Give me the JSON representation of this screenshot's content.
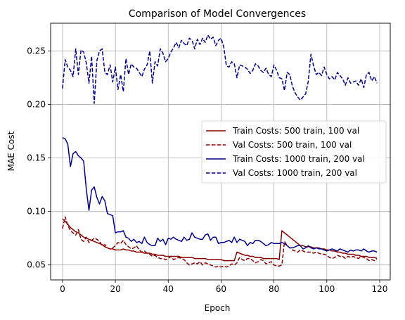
{
  "chart_data": {
    "type": "line",
    "title": "Comparison of Model Convergences",
    "xlabel": "Epoch",
    "ylabel": "MAE Cost",
    "xlim": [
      -4.5,
      124
    ],
    "ylim": [
      0.036,
      0.276
    ],
    "xticks": [
      0,
      20,
      40,
      60,
      80,
      100,
      120
    ],
    "xtick_labels": [
      "0",
      "20",
      "40",
      "60",
      "80",
      "100",
      "120"
    ],
    "yticks": [
      0.05,
      0.1,
      0.15,
      0.2,
      0.25
    ],
    "ytick_labels": [
      "0.05",
      "0.10",
      "0.15",
      "0.20",
      "0.25"
    ],
    "grid": true,
    "legend_position": "center-right",
    "x": [
      0,
      1,
      2,
      3,
      4,
      5,
      6,
      7,
      8,
      9,
      10,
      11,
      12,
      13,
      14,
      15,
      16,
      17,
      18,
      19,
      20,
      21,
      22,
      23,
      24,
      25,
      26,
      27,
      28,
      29,
      30,
      31,
      32,
      33,
      34,
      35,
      36,
      37,
      38,
      39,
      40,
      41,
      42,
      43,
      44,
      45,
      46,
      47,
      48,
      49,
      50,
      51,
      52,
      53,
      54,
      55,
      56,
      57,
      58,
      59,
      60,
      61,
      62,
      63,
      64,
      65,
      66,
      67,
      68,
      69,
      70,
      71,
      72,
      73,
      74,
      75,
      76,
      77,
      78,
      79,
      80,
      81,
      82,
      83,
      84,
      85,
      86,
      87,
      88,
      89,
      90,
      91,
      92,
      93,
      94,
      95,
      96,
      97,
      98,
      99,
      100,
      101,
      102,
      103,
      104,
      105,
      106,
      107,
      108,
      109,
      110,
      111,
      112,
      113,
      114,
      115,
      116,
      117,
      118,
      119
    ],
    "series": [
      {
        "name": "Train Costs: 500 train, 100 val",
        "color": "#8b0000",
        "dash": "solid",
        "values": [
          0.093,
          0.091,
          0.088,
          0.085,
          0.083,
          0.081,
          0.08,
          0.078,
          0.076,
          0.075,
          0.074,
          0.073,
          0.072,
          0.071,
          0.07,
          0.069,
          0.067,
          0.066,
          0.065,
          0.065,
          0.064,
          0.064,
          0.064,
          0.065,
          0.064,
          0.064,
          0.063,
          0.063,
          0.062,
          0.062,
          0.062,
          0.061,
          0.061,
          0.061,
          0.06,
          0.06,
          0.059,
          0.059,
          0.059,
          0.058,
          0.058,
          0.058,
          0.058,
          0.058,
          0.058,
          0.057,
          0.057,
          0.057,
          0.057,
          0.057,
          0.056,
          0.056,
          0.056,
          0.056,
          0.056,
          0.055,
          0.055,
          0.055,
          0.055,
          0.055,
          0.055,
          0.054,
          0.054,
          0.054,
          0.054,
          0.054,
          0.062,
          0.061,
          0.06,
          0.059,
          0.059,
          0.058,
          0.058,
          0.057,
          0.057,
          0.057,
          0.056,
          0.056,
          0.056,
          0.056,
          0.056,
          0.056,
          0.055,
          0.082,
          0.08,
          0.078,
          0.076,
          0.074,
          0.072,
          0.07,
          0.068,
          0.068,
          0.067,
          0.067,
          0.067,
          0.066,
          0.066,
          0.066,
          0.065,
          0.065,
          0.064,
          0.064,
          0.063,
          0.063,
          0.062,
          0.062,
          0.061,
          0.061,
          0.06,
          0.06,
          0.06,
          0.059,
          0.059,
          0.058,
          0.058,
          0.058,
          0.057,
          0.057,
          0.057,
          0.056
        ]
      },
      {
        "name": "Val Costs: 500 train, 100 val",
        "color": "#8b0000",
        "dash": "dashed",
        "values": [
          0.084,
          0.095,
          0.087,
          0.082,
          0.08,
          0.078,
          0.083,
          0.074,
          0.072,
          0.076,
          0.071,
          0.073,
          0.075,
          0.074,
          0.072,
          0.068,
          0.069,
          0.066,
          0.065,
          0.066,
          0.068,
          0.071,
          0.07,
          0.073,
          0.069,
          0.067,
          0.065,
          0.066,
          0.068,
          0.064,
          0.062,
          0.063,
          0.061,
          0.06,
          0.058,
          0.059,
          0.057,
          0.056,
          0.056,
          0.055,
          0.056,
          0.058,
          0.055,
          0.056,
          0.057,
          0.056,
          0.055,
          0.052,
          0.05,
          0.051,
          0.052,
          0.051,
          0.053,
          0.05,
          0.052,
          0.051,
          0.05,
          0.049,
          0.048,
          0.049,
          0.048,
          0.049,
          0.048,
          0.049,
          0.051,
          0.05,
          0.052,
          0.057,
          0.055,
          0.054,
          0.056,
          0.056,
          0.054,
          0.052,
          0.053,
          0.055,
          0.054,
          0.051,
          0.052,
          0.053,
          0.05,
          0.049,
          0.049,
          0.05,
          0.072,
          0.068,
          0.066,
          0.064,
          0.063,
          0.062,
          0.064,
          0.063,
          0.062,
          0.062,
          0.062,
          0.061,
          0.062,
          0.061,
          0.06,
          0.06,
          0.059,
          0.057,
          0.056,
          0.057,
          0.059,
          0.058,
          0.058,
          0.056,
          0.058,
          0.057,
          0.058,
          0.057,
          0.056,
          0.058,
          0.057,
          0.056,
          0.054,
          0.055,
          0.054,
          0.055
        ]
      },
      {
        "name": "Train Costs: 1000 train, 200 val",
        "color": "#00008b",
        "dash": "solid",
        "values": [
          0.169,
          0.168,
          0.163,
          0.142,
          0.154,
          0.156,
          0.152,
          0.15,
          0.147,
          0.121,
          0.101,
          0.12,
          0.123,
          0.113,
          0.107,
          0.114,
          0.11,
          0.098,
          0.097,
          0.096,
          0.08,
          0.081,
          0.081,
          0.082,
          0.076,
          0.075,
          0.072,
          0.074,
          0.071,
          0.072,
          0.07,
          0.076,
          0.071,
          0.069,
          0.068,
          0.068,
          0.075,
          0.072,
          0.074,
          0.069,
          0.075,
          0.074,
          0.076,
          0.074,
          0.073,
          0.072,
          0.076,
          0.073,
          0.074,
          0.08,
          0.076,
          0.075,
          0.074,
          0.074,
          0.078,
          0.079,
          0.073,
          0.076,
          0.076,
          0.07,
          0.071,
          0.071,
          0.072,
          0.073,
          0.071,
          0.076,
          0.071,
          0.074,
          0.073,
          0.072,
          0.068,
          0.071,
          0.07,
          0.073,
          0.073,
          0.072,
          0.07,
          0.068,
          0.069,
          0.071,
          0.07,
          0.07,
          0.07,
          0.071,
          0.07,
          0.068,
          0.066,
          0.066,
          0.067,
          0.068,
          0.068,
          0.065,
          0.066,
          0.068,
          0.066,
          0.065,
          0.066,
          0.065,
          0.065,
          0.064,
          0.063,
          0.064,
          0.065,
          0.064,
          0.063,
          0.065,
          0.064,
          0.063,
          0.062,
          0.064,
          0.063,
          0.064,
          0.064,
          0.063,
          0.065,
          0.063,
          0.062,
          0.063,
          0.063,
          0.062
        ]
      },
      {
        "name": "Val Costs: 1000 train, 200 val",
        "color": "#00008b",
        "dash": "dashed",
        "values": [
          0.215,
          0.242,
          0.235,
          0.232,
          0.226,
          0.252,
          0.228,
          0.251,
          0.249,
          0.239,
          0.22,
          0.245,
          0.201,
          0.241,
          0.25,
          0.252,
          0.23,
          0.228,
          0.237,
          0.221,
          0.235,
          0.214,
          0.228,
          0.212,
          0.243,
          0.228,
          0.238,
          0.235,
          0.234,
          0.23,
          0.226,
          0.233,
          0.237,
          0.25,
          0.22,
          0.24,
          0.236,
          0.252,
          0.248,
          0.24,
          0.243,
          0.249,
          0.253,
          0.258,
          0.253,
          0.26,
          0.257,
          0.255,
          0.262,
          0.26,
          0.252,
          0.261,
          0.256,
          0.262,
          0.258,
          0.265,
          0.261,
          0.263,
          0.255,
          0.26,
          0.262,
          0.254,
          0.236,
          0.235,
          0.24,
          0.238,
          0.225,
          0.237,
          0.236,
          0.235,
          0.233,
          0.229,
          0.232,
          0.238,
          0.236,
          0.232,
          0.23,
          0.234,
          0.228,
          0.226,
          0.237,
          0.232,
          0.225,
          0.224,
          0.213,
          0.23,
          0.228,
          0.217,
          0.211,
          0.207,
          0.204,
          0.207,
          0.21,
          0.222,
          0.247,
          0.236,
          0.228,
          0.23,
          0.227,
          0.235,
          0.228,
          0.224,
          0.226,
          0.223,
          0.23,
          0.227,
          0.224,
          0.218,
          0.225,
          0.22,
          0.221,
          0.222,
          0.218,
          0.224,
          0.216,
          0.228,
          0.23,
          0.222,
          0.226,
          0.22
        ]
      }
    ]
  }
}
